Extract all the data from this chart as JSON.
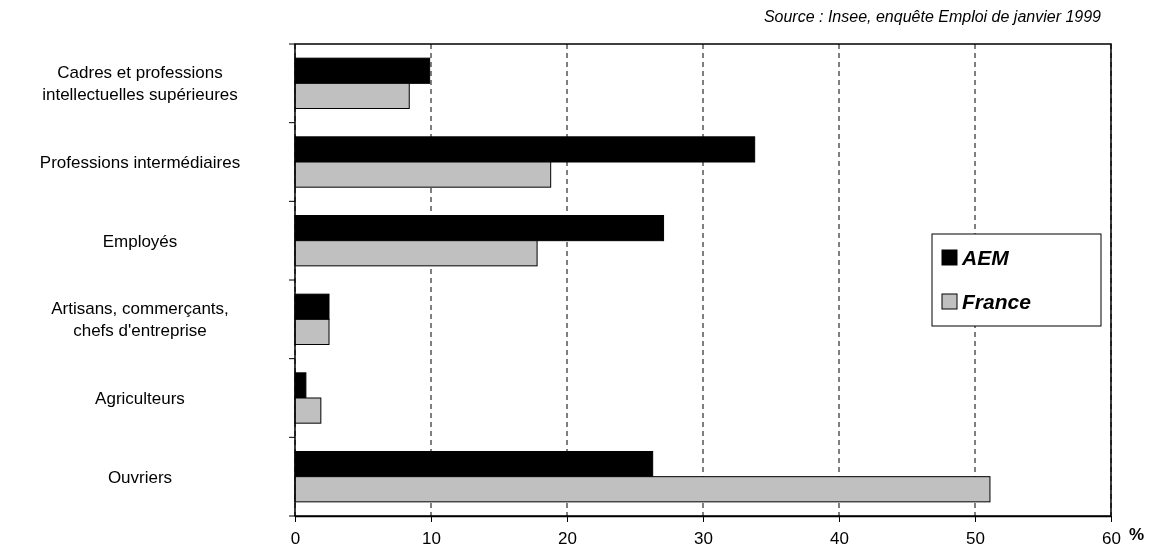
{
  "chart_data": {
    "type": "bar",
    "orientation": "horizontal",
    "xlabel": "%",
    "annotations": [
      "Source : Insee, enquête Emploi de janvier 1999"
    ],
    "categories": [
      "Cadres et professions\nintellectuelles supérieures",
      "Professions intermédiaires",
      "Employés",
      "Artisans, commerçants,\nchefs d'entreprise",
      "Agriculteurs",
      "Ouvriers"
    ],
    "series": [
      {
        "name": "AEM",
        "color": "#000000",
        "values": [
          9.9,
          33.8,
          27.1,
          2.5,
          0.8,
          26.3
        ]
      },
      {
        "name": "France",
        "color": "#c0c0c0",
        "values": [
          8.4,
          18.8,
          17.8,
          2.5,
          1.9,
          51.1
        ]
      }
    ],
    "xlim": [
      0,
      60
    ],
    "xticks": [
      0,
      10,
      20,
      30,
      40,
      50,
      60
    ],
    "grid": "x",
    "legend": "right"
  }
}
